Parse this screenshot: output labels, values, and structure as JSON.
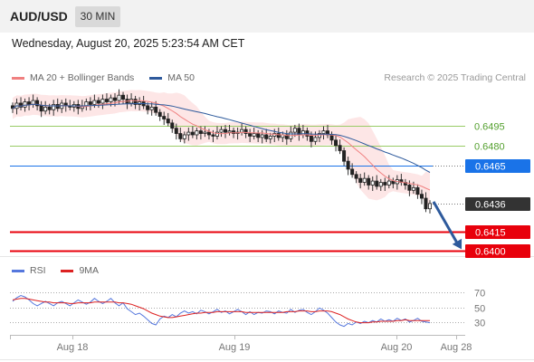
{
  "header": {
    "pair": "AUD/USD",
    "timeframe": "30 MIN",
    "datetime": "Wednesday, August 20, 2025 5:23:54 AM CET"
  },
  "legend": {
    "bollinger": "MA 20 + Bollinger Bands",
    "ma50": "MA 50",
    "rsi": "RSI",
    "rsi_ma": "9MA",
    "credit": "Research © 2025 Trading Central"
  },
  "colors": {
    "bollinger": "#f08080",
    "band_fill": "#fde2e2",
    "ma50": "#2e5a9c",
    "resistance": "#99cc66",
    "pivot": "#1a73e8",
    "support": "#e8000b",
    "current": "#333333",
    "rsi": "#5577dd",
    "rsi_ma": "#dd2222",
    "arrow": "#2e5a9c"
  },
  "chart_data": [
    {
      "type": "candlestick",
      "series_names": [
        "MA 20 + Bollinger Bands",
        "MA 50"
      ],
      "x_labels": [
        "Aug 18",
        "Aug 19",
        "Aug 20",
        "Aug 28"
      ],
      "levels": [
        {
          "value": "0.6495",
          "kind": "resistance"
        },
        {
          "value": "0.6480",
          "kind": "resistance"
        },
        {
          "value": "0.6465",
          "kind": "pivot"
        },
        {
          "value": "0.6436",
          "kind": "current"
        },
        {
          "value": "0.6415",
          "kind": "support"
        },
        {
          "value": "0.6400",
          "kind": "support"
        }
      ],
      "ylim": [
        0.639,
        0.6525
      ],
      "close_path": [
        0.6508,
        0.6512,
        0.6509,
        0.6513,
        0.6511,
        0.6514,
        0.651,
        0.6506,
        0.6509,
        0.6507,
        0.6511,
        0.6508,
        0.6512,
        0.651,
        0.6509,
        0.6511,
        0.6508,
        0.651,
        0.6513,
        0.6511,
        0.6514,
        0.6512,
        0.6515,
        0.6513,
        0.6516,
        0.6514,
        0.6518,
        0.6515,
        0.6512,
        0.6515,
        0.6511,
        0.6513,
        0.651,
        0.6507,
        0.6509,
        0.6505,
        0.6502,
        0.65,
        0.6497,
        0.6493,
        0.6489,
        0.6485,
        0.6488,
        0.649,
        0.6488,
        0.6491,
        0.6489,
        0.649,
        0.6488,
        0.6487,
        0.649,
        0.6492,
        0.649,
        0.6491,
        0.6489,
        0.649,
        0.6492,
        0.6489,
        0.6487,
        0.6489,
        0.6486,
        0.6488,
        0.6485,
        0.6487,
        0.6489,
        0.6486,
        0.6488,
        0.6485,
        0.649,
        0.6493,
        0.6488,
        0.6491,
        0.6487,
        0.6483,
        0.6486,
        0.6489,
        0.6491,
        0.6488,
        0.6484,
        0.648,
        0.6476,
        0.6468,
        0.6462,
        0.6458,
        0.6455,
        0.6452,
        0.6455,
        0.645,
        0.6453,
        0.6449,
        0.6452,
        0.645,
        0.6453,
        0.6451,
        0.6454,
        0.6452,
        0.645,
        0.6446,
        0.6448,
        0.6443,
        0.644,
        0.6432,
        0.6436
      ]
    },
    {
      "type": "line",
      "series_names": [
        "RSI",
        "9MA"
      ],
      "yticks": [
        "70",
        "50",
        "30"
      ],
      "ylim": [
        15,
        85
      ],
      "series": [
        {
          "name": "RSI",
          "values": [
            58,
            63,
            66,
            64,
            60,
            55,
            52,
            55,
            58,
            55,
            52,
            56,
            58,
            55,
            52,
            56,
            60,
            57,
            54,
            57,
            62,
            58,
            55,
            58,
            62,
            56,
            52,
            56,
            48,
            44,
            40,
            42,
            38,
            33,
            28,
            26,
            34,
            38,
            36,
            40,
            37,
            42,
            45,
            42,
            44,
            41,
            46,
            44,
            41,
            44,
            47,
            43,
            45,
            41,
            44,
            47,
            44,
            40,
            44,
            40,
            43,
            42,
            45,
            44,
            41,
            45,
            43,
            42,
            47,
            43,
            46,
            47,
            43,
            40,
            44,
            49,
            46,
            42,
            36,
            30,
            26,
            24,
            28,
            26,
            30,
            28,
            31,
            29,
            32,
            30,
            34,
            31,
            33,
            31,
            35,
            32,
            34,
            30,
            32,
            35,
            31,
            30,
            29
          ]
        },
        {
          "name": "9MA",
          "values": [
            60,
            61,
            62,
            62,
            61,
            60,
            59,
            58,
            57,
            57,
            56,
            56,
            56,
            56,
            55,
            55,
            56,
            56,
            56,
            56,
            57,
            57,
            57,
            57,
            57,
            57,
            56,
            56,
            55,
            54,
            52,
            50,
            48,
            45,
            42,
            40,
            38,
            37,
            36,
            36,
            37,
            38,
            39,
            40,
            41,
            42,
            42,
            43,
            43,
            43,
            44,
            44,
            44,
            44,
            44,
            44,
            44,
            43,
            43,
            43,
            43,
            43,
            43,
            43,
            43,
            43,
            43,
            44,
            44,
            44,
            45,
            45,
            45,
            44,
            44,
            45,
            45,
            45,
            44,
            42,
            40,
            37,
            34,
            32,
            30,
            29,
            29,
            29,
            30,
            30,
            31,
            31,
            31,
            31,
            32,
            32,
            33,
            32,
            32,
            32,
            32,
            32,
            32
          ]
        }
      ]
    }
  ]
}
